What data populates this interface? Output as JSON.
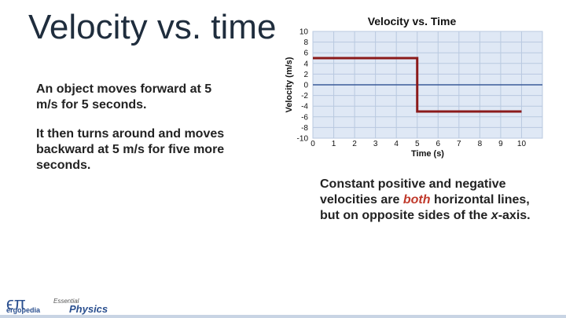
{
  "title": "Velocity vs. time",
  "paragraphs": [
    "An object moves forward at 5 m/s for 5 seconds.",
    "It then turns around and moves backward at 5 m/s for five more seconds."
  ],
  "note": [
    "Constant positive and negative velocities are ",
    "both",
    " horizontal lines, but on opposite sides of the ",
    "x",
    "-axis."
  ],
  "logo": {
    "symbol": "ϵπ",
    "brand": "ergopedia",
    "series": "Essential",
    "product": "Physics"
  },
  "chart_data": {
    "type": "line",
    "title": "Velocity vs. Time",
    "x_label": "Time (s)",
    "y_label": "Velocity (m/s)",
    "x": [
      0,
      5,
      5,
      10
    ],
    "series": [
      {
        "name": "Velocity",
        "color": "#8b1a1a",
        "values": [
          5,
          5,
          -5,
          -5
        ]
      }
    ],
    "xlim": [
      0,
      11
    ],
    "xticks": [
      0,
      1,
      2,
      3,
      4,
      5,
      6,
      7,
      8,
      9,
      10
    ],
    "ylim": [
      -10,
      10
    ],
    "yticks": [
      -10,
      -8,
      -6,
      -4,
      -2,
      0,
      2,
      4,
      6,
      8,
      10
    ],
    "grid": true
  }
}
